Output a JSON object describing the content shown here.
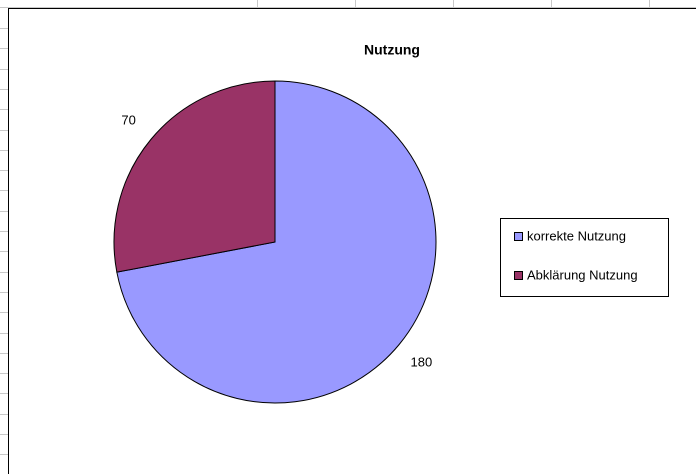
{
  "chart_data": {
    "type": "pie",
    "title": "Nutzung",
    "categories": [
      "korrekte Nutzung",
      "Abklärung Nutzung"
    ],
    "values": [
      180,
      70
    ],
    "colors": [
      "#9999ff",
      "#993366"
    ],
    "legend": "right"
  }
}
